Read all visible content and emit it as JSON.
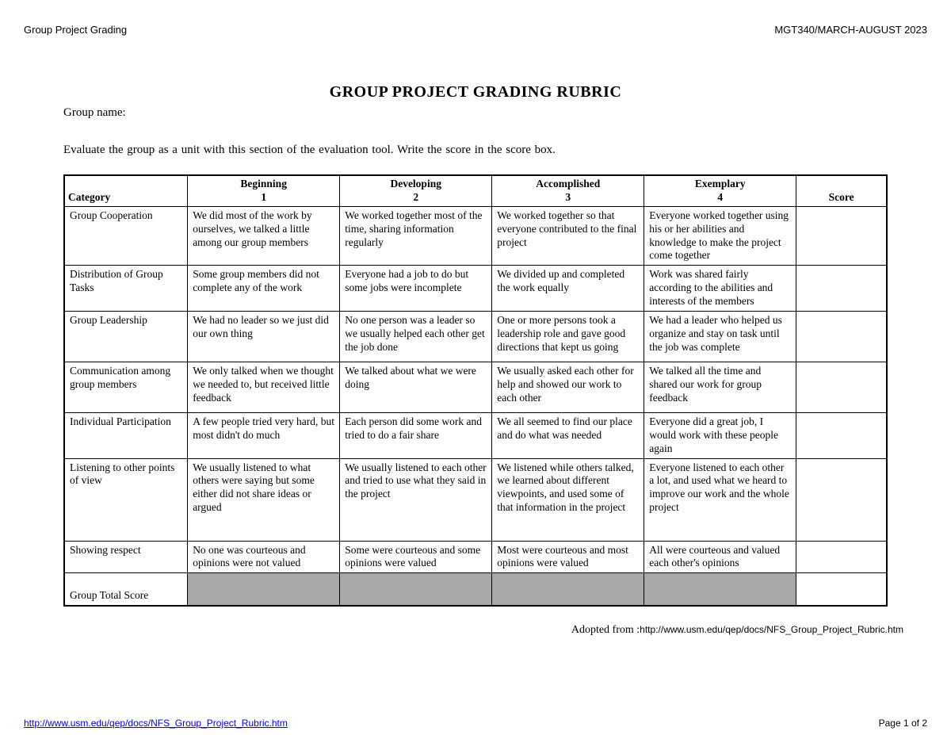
{
  "header": {
    "left": "Group Project Grading",
    "right": "MGT340/MARCH-AUGUST 2023"
  },
  "title": "GROUP PROJECT  GRADING RUBRIC",
  "group_name_label": "Group name:",
  "instruction": "Evaluate the group as a unit with this section of the evaluation tool. Write the score in the score   box.",
  "columns": {
    "category": "Category",
    "levels": [
      {
        "name": "Beginning",
        "num": "1"
      },
      {
        "name": "Developing",
        "num": "2"
      },
      {
        "name": "Accomplished",
        "num": "3"
      },
      {
        "name": "Exemplary",
        "num": "4"
      }
    ],
    "score": "Score"
  },
  "rows": [
    {
      "category": "Group Cooperation",
      "cells": [
        "We did  most  of the work by ourselves, we talked a little among our group members",
        "We  worked together most of the time, sharing information regularly",
        "We worked together so that everyone contributed to the final project",
        "Everyone worked together using his or her abilities and knowledge to make the project come together"
      ]
    },
    {
      "category": "Distribution of Group Tasks",
      "cells": [
        "Some group members did not complete any of the work",
        "Everyone had a job to do but some jobs were incomplete",
        "We divided up and completed the work equally",
        "Work was shared fairly according to the abilities and interests of the members"
      ]
    },
    {
      "category": "Group Leadership",
      "cells": [
        "We had no leader so we just did our own thing",
        "No one person was a leader so we usually helped each other get the        job done",
        "One or more persons took a leadership role and gave good directions that kept us going",
        "We had a leader who helped us organize and stay on task until the job       was complete"
      ],
      "tall": true
    },
    {
      "category": "Communication among group members",
      "cells": [
        "We only talked when we thought we needed to, but received little feedback",
        "We talked about what we were doing",
        "We usually asked each other for help and showed our work to each other",
        "We talked all the time and shared our work for group feedback"
      ],
      "tall": true
    },
    {
      "category": "Individual Participation",
      "cells": [
        "A few people tried very hard, but most didn't do much",
        "Each person did some work and tried to do a fair share",
        "We all seemed to find our place and do what was needed",
        "Everyone did a great job, I would work with these people again"
      ]
    },
    {
      "category": "Listening to other points of view",
      "cells": [
        "We usually listened to what others were saying but some either did not share ideas or argued",
        "We usually listened to each other and tried  to use what they said in the  project",
        "We listened while others talked, we learned about different viewpoints, and used some of that information in the project",
        "Everyone listened to each other a lot, and used what we heard to improve our work and the whole project"
      ],
      "taller": true
    },
    {
      "category": "Showing respect",
      "cells": [
        "No one was courteous       and opinions were not valued",
        "Some were courteous and some opinions were valued",
        "Most were  courteous and most opinions were valued",
        "All were courteous and valued each other's opinions"
      ]
    }
  ],
  "total_label": "Group Total Score",
  "adopted": {
    "prefix": "Adopted from :",
    "url": "http://www.usm.edu/qep/docs/NFS_Group_Project_Rubric.htm"
  },
  "footer": {
    "link": "http://www.usm.edu/qep/docs/NFS_Group_Project_Rubric.htm",
    "page": "Page 1 of 2"
  },
  "style": {
    "shade_color": "#a9a9a9",
    "border_color": "#000000",
    "background": "#ffffff"
  }
}
